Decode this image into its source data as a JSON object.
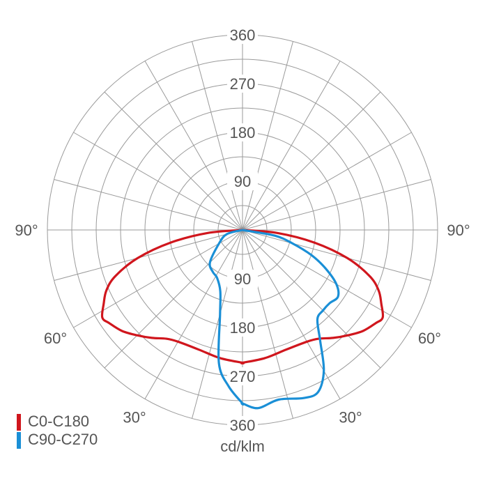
{
  "chart_data": {
    "type": "polar",
    "unit": "cd/klm",
    "radial_ticks_upper": [
      "360",
      "270",
      "180",
      "90"
    ],
    "radial_ticks_lower": [
      "90",
      "180",
      "270",
      "360"
    ],
    "radial_tick_values": [
      90,
      180,
      270,
      360
    ],
    "rmax": 360,
    "angle_labels": [
      {
        "text": "90°",
        "side": "left",
        "angle": 90
      },
      {
        "text": "90°",
        "side": "right",
        "angle": 90
      },
      {
        "text": "60°",
        "side": "left",
        "angle": 60
      },
      {
        "text": "60°",
        "side": "right",
        "angle": 60
      },
      {
        "text": "30°",
        "side": "left",
        "angle": 30
      },
      {
        "text": "30°",
        "side": "right",
        "angle": 30
      }
    ],
    "grid": true,
    "legend_position": "bottom-left",
    "series": [
      {
        "name": "C0-C180",
        "color": "#d0161d",
        "points_left": [
          [
            0,
            245
          ],
          [
            10,
            240
          ],
          [
            20,
            235
          ],
          [
            30,
            238
          ],
          [
            35,
            245
          ],
          [
            40,
            260
          ],
          [
            45,
            275
          ],
          [
            50,
            290
          ],
          [
            55,
            300
          ],
          [
            58,
            305
          ],
          [
            62,
            290
          ],
          [
            66,
            275
          ],
          [
            70,
            250
          ],
          [
            75,
            200
          ],
          [
            80,
            135
          ],
          [
            85,
            65
          ],
          [
            90,
            0
          ]
        ],
        "points_right": [
          [
            0,
            245
          ],
          [
            10,
            240
          ],
          [
            20,
            235
          ],
          [
            30,
            238
          ],
          [
            35,
            245
          ],
          [
            40,
            260
          ],
          [
            45,
            275
          ],
          [
            50,
            290
          ],
          [
            55,
            300
          ],
          [
            58,
            305
          ],
          [
            62,
            290
          ],
          [
            66,
            275
          ],
          [
            70,
            250
          ],
          [
            75,
            200
          ],
          [
            80,
            135
          ],
          [
            85,
            65
          ],
          [
            90,
            0
          ]
        ]
      },
      {
        "name": "C90-C270",
        "color": "#1a8fd6",
        "points_left": [
          [
            0,
            320
          ],
          [
            5,
            290
          ],
          [
            10,
            250
          ],
          [
            15,
            160
          ],
          [
            20,
            120
          ],
          [
            28,
            100
          ],
          [
            35,
            95
          ],
          [
            45,
            85
          ],
          [
            60,
            50
          ],
          [
            75,
            30
          ],
          [
            90,
            0
          ]
        ],
        "points_right": [
          [
            0,
            320
          ],
          [
            5,
            330
          ],
          [
            12,
            320
          ],
          [
            20,
            330
          ],
          [
            25,
            330
          ],
          [
            30,
            300
          ],
          [
            35,
            250
          ],
          [
            40,
            215
          ],
          [
            45,
            210
          ],
          [
            50,
            210
          ],
          [
            55,
            215
          ],
          [
            60,
            200
          ],
          [
            65,
            170
          ],
          [
            70,
            135
          ],
          [
            75,
            95
          ],
          [
            80,
            60
          ],
          [
            90,
            0
          ]
        ]
      }
    ]
  }
}
